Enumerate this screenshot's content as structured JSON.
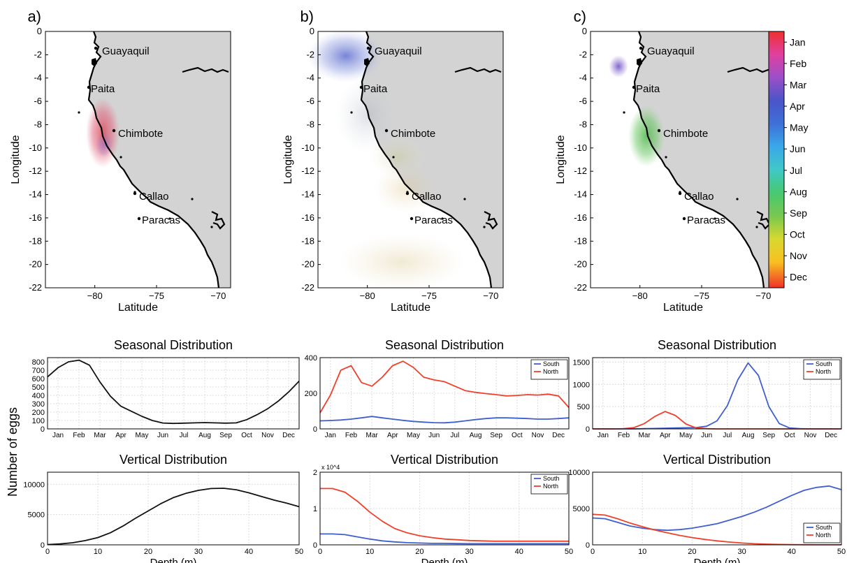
{
  "figure": {
    "ylabel_common": "Number of eggs",
    "colors": {
      "land": "#d3d3d3",
      "south": "#3f5fd0",
      "north": "#f0402a",
      "black": "#111111",
      "grid": "#dcdcdc"
    }
  },
  "maps": [
    {
      "panel_label": "a)",
      "xlabel": "Latitude",
      "ylabel": "Longitude",
      "x_ticks": [
        "-80",
        "-75",
        "-70"
      ],
      "y_ticks": [
        "0",
        "-2",
        "-4",
        "-6",
        "-8",
        "-10",
        "-12",
        "-14",
        "-16",
        "-18",
        "-20",
        "-22"
      ],
      "xlim": [
        -84,
        -69
      ],
      "ylim": [
        -22,
        0
      ],
      "cities": [
        "Guayaquil",
        "Paita",
        "Chimbote",
        "Callao",
        "Paracas",
        "Chimbote",
        "Callao",
        "Paracas"
      ]
    },
    {
      "panel_label": "b)",
      "xlabel": "Latitude",
      "ylabel": "Longitude",
      "x_ticks": [
        "-80",
        "-75",
        "-70"
      ],
      "y_ticks": [
        "0",
        "-2",
        "-4",
        "-6",
        "-8",
        "-10",
        "-12",
        "-14",
        "-16",
        "-18",
        "-20",
        "-22"
      ],
      "xlim": [
        -84,
        -69
      ],
      "ylim": [
        -22,
        0
      ],
      "cities": [
        "Guayaquil",
        "Paita",
        "Chimbote",
        "Callao",
        "Paracas"
      ]
    },
    {
      "panel_label": "c)",
      "xlabel": "Latitude",
      "ylabel": "Longitude",
      "x_ticks": [
        "-80",
        "-75",
        "-70"
      ],
      "y_ticks": [
        "0",
        "-2",
        "-4",
        "-6",
        "-8",
        "-10",
        "-12",
        "-14",
        "-16",
        "-18",
        "-20",
        "-22"
      ],
      "xlim": [
        -84,
        -69
      ],
      "ylim": [
        -22,
        0
      ],
      "cities": [
        "Guayaquil",
        "Paita",
        "Chimbote",
        "Callao",
        "Paracas"
      ]
    }
  ],
  "colorbar": {
    "labels": [
      "Jan",
      "Feb",
      "Mar",
      "Apr",
      "May",
      "Jun",
      "Jul",
      "Aug",
      "Sep",
      "Oct",
      "Nov",
      "Dec"
    ],
    "colors": [
      "#f03030",
      "#e040a0",
      "#9b4fc8",
      "#4a55c8",
      "#3f70d8",
      "#3aa8e8",
      "#40c8c8",
      "#48c870",
      "#78c850",
      "#d8d830",
      "#f8c020",
      "#f05028"
    ]
  },
  "chart_data": [
    {
      "type": "line",
      "title": "Seasonal Distribution",
      "xlabel": "",
      "ylabel": "",
      "categories": [
        "Jan",
        "Feb",
        "Mar",
        "Apr",
        "May",
        "Jun",
        "Jul",
        "Aug",
        "Sep",
        "Oct",
        "Nov",
        "Dec"
      ],
      "xlim": [
        0.5,
        12.5
      ],
      "ylim": [
        0,
        850
      ],
      "yticks": [
        0,
        100,
        200,
        300,
        400,
        500,
        600,
        700,
        800
      ],
      "series": [
        {
          "color": "#111111",
          "x": [
            0.5,
            1,
            1.5,
            2,
            2.5,
            3,
            3.5,
            4,
            4.5,
            5,
            5.5,
            6,
            6.5,
            7,
            7.5,
            8,
            8.5,
            9,
            9.5,
            10,
            10.5,
            11,
            11.5,
            12,
            12.5
          ],
          "y": [
            620,
            730,
            800,
            820,
            760,
            560,
            390,
            270,
            210,
            150,
            100,
            70,
            65,
            68,
            72,
            75,
            72,
            68,
            72,
            110,
            170,
            240,
            330,
            440,
            570
          ]
        }
      ]
    },
    {
      "type": "line",
      "title": "Seasonal Distribution",
      "xlabel": "",
      "ylabel": "",
      "categories": [
        "Jan",
        "Feb",
        "Mar",
        "Apr",
        "May",
        "Jun",
        "Jul",
        "Aug",
        "Sep",
        "Oct",
        "Nov",
        "Dec"
      ],
      "xlim": [
        0.5,
        12.5
      ],
      "ylim": [
        0,
        400
      ],
      "yticks": [
        0,
        200,
        400
      ],
      "legend": [
        "South",
        "North"
      ],
      "legend_position": "top-right",
      "series": [
        {
          "name": "South",
          "color": "#3f5fd0",
          "x": [
            0.5,
            1,
            1.5,
            2,
            2.5,
            3,
            3.5,
            4,
            4.5,
            5,
            5.5,
            6,
            6.5,
            7,
            7.5,
            8,
            8.5,
            9,
            9.5,
            10,
            10.5,
            11,
            11.5,
            12,
            12.5
          ],
          "y": [
            45,
            47,
            50,
            55,
            62,
            70,
            62,
            55,
            48,
            42,
            38,
            35,
            34,
            38,
            45,
            52,
            58,
            62,
            62,
            60,
            58,
            55,
            55,
            58,
            62
          ]
        },
        {
          "name": "North",
          "color": "#f0402a",
          "x": [
            0.5,
            1,
            1.5,
            2,
            2.5,
            3,
            3.5,
            4,
            4.5,
            5,
            5.5,
            6,
            6.5,
            7,
            7.5,
            8,
            8.5,
            9,
            9.5,
            10,
            10.5,
            11,
            11.5,
            12,
            12.5
          ],
          "y": [
            90,
            190,
            330,
            355,
            260,
            240,
            290,
            355,
            380,
            345,
            290,
            275,
            265,
            240,
            215,
            205,
            198,
            192,
            185,
            188,
            192,
            190,
            195,
            185,
            120
          ]
        }
      ]
    },
    {
      "type": "line",
      "title": "Seasonal Distribution",
      "xlabel": "",
      "ylabel": "",
      "categories": [
        "Jan",
        "Feb",
        "Mar",
        "Apr",
        "May",
        "Jun",
        "Jul",
        "Aug",
        "Sep",
        "Oct",
        "Nov",
        "Dec"
      ],
      "xlim": [
        0.5,
        12.5
      ],
      "ylim": [
        0,
        1600
      ],
      "yticks": [
        0,
        500,
        1000,
        1500
      ],
      "legend": [
        "South",
        "North"
      ],
      "legend_position": "top-right",
      "series": [
        {
          "name": "South",
          "color": "#3f5fd0",
          "x": [
            0.5,
            1,
            1.5,
            2,
            2.5,
            3,
            3.5,
            4,
            4.5,
            5,
            5.5,
            6,
            6.5,
            7,
            7.5,
            8,
            8.5,
            9,
            9.5,
            10,
            10.5,
            11,
            11.5,
            12,
            12.5
          ],
          "y": [
            0,
            0,
            0,
            0,
            0,
            5,
            10,
            15,
            20,
            25,
            30,
            60,
            180,
            520,
            1100,
            1480,
            1200,
            500,
            120,
            20,
            5,
            0,
            0,
            0,
            0
          ]
        },
        {
          "name": "North",
          "color": "#f0402a",
          "x": [
            0.5,
            1,
            1.5,
            2,
            2.5,
            3,
            3.5,
            4,
            4.5,
            5,
            5.5,
            6,
            6.5,
            7,
            7.5,
            8,
            8.5,
            9,
            9.5,
            10,
            10.5,
            11,
            11.5,
            12,
            12.5
          ],
          "y": [
            0,
            0,
            0,
            5,
            30,
            120,
            280,
            390,
            300,
            110,
            20,
            5,
            0,
            0,
            0,
            0,
            0,
            0,
            0,
            0,
            0,
            0,
            0,
            0,
            0
          ]
        }
      ]
    },
    {
      "type": "line",
      "title": "Vertical Distribution",
      "xlabel": "Depth (m)",
      "ylabel": "",
      "xlim": [
        0,
        50
      ],
      "xticks": [
        0,
        10,
        20,
        30,
        40,
        50
      ],
      "ylim": [
        0,
        12000
      ],
      "yticks": [
        0,
        5000,
        10000
      ],
      "series": [
        {
          "color": "#111111",
          "x": [
            0,
            2.5,
            5,
            7.5,
            10,
            12.5,
            15,
            17.5,
            20,
            22.5,
            25,
            27.5,
            30,
            32.5,
            35,
            37.5,
            40,
            42.5,
            45,
            47.5,
            50
          ],
          "y": [
            50,
            150,
            350,
            700,
            1200,
            2000,
            3100,
            4400,
            5600,
            6800,
            7800,
            8500,
            9000,
            9300,
            9350,
            9100,
            8600,
            8000,
            7400,
            6900,
            6300
          ]
        }
      ]
    },
    {
      "type": "line",
      "title": "Vertical Distribution",
      "xlabel": "Depth (m)",
      "ylabel": "",
      "xlim": [
        0,
        50
      ],
      "xticks": [
        0,
        10,
        20,
        30,
        40,
        50
      ],
      "ylim": [
        0,
        2
      ],
      "yticks": [
        0,
        1,
        2
      ],
      "y_scale_label": "x 10^4",
      "legend": [
        "South",
        "North"
      ],
      "legend_position": "top-right",
      "series": [
        {
          "name": "South",
          "color": "#3f5fd0",
          "x": [
            0,
            2.5,
            5,
            7.5,
            10,
            12.5,
            15,
            17.5,
            20,
            22.5,
            25,
            27.5,
            30,
            32.5,
            35,
            37.5,
            40,
            42.5,
            45,
            47.5,
            50
          ],
          "y": [
            0.3,
            0.3,
            0.28,
            0.22,
            0.16,
            0.11,
            0.08,
            0.06,
            0.05,
            0.04,
            0.04,
            0.035,
            0.03,
            0.03,
            0.03,
            0.03,
            0.03,
            0.03,
            0.03,
            0.03,
            0.03
          ]
        },
        {
          "name": "North",
          "color": "#f0402a",
          "x": [
            0,
            2.5,
            5,
            7.5,
            10,
            12.5,
            15,
            17.5,
            20,
            22.5,
            25,
            27.5,
            30,
            32.5,
            35,
            37.5,
            40,
            42.5,
            45,
            47.5,
            50
          ],
          "y": [
            1.55,
            1.55,
            1.45,
            1.2,
            0.9,
            0.65,
            0.45,
            0.33,
            0.25,
            0.2,
            0.16,
            0.14,
            0.12,
            0.11,
            0.1,
            0.1,
            0.1,
            0.1,
            0.1,
            0.1,
            0.1
          ]
        }
      ]
    },
    {
      "type": "line",
      "title": "Vertical Distribution",
      "xlabel": "Depth (m)",
      "ylabel": "",
      "xlim": [
        0,
        50
      ],
      "xticks": [
        0,
        10,
        20,
        30,
        40,
        50
      ],
      "ylim": [
        0,
        10000
      ],
      "yticks": [
        0,
        5000,
        10000
      ],
      "legend": [
        "South",
        "North"
      ],
      "legend_position": "bottom-right",
      "series": [
        {
          "name": "South",
          "color": "#3f5fd0",
          "x": [
            0,
            2.5,
            5,
            7.5,
            10,
            12.5,
            15,
            17.5,
            20,
            22.5,
            25,
            27.5,
            30,
            32.5,
            35,
            37.5,
            40,
            42.5,
            45,
            47.5,
            50
          ],
          "y": [
            3700,
            3600,
            3100,
            2600,
            2300,
            2100,
            2000,
            2100,
            2300,
            2600,
            2900,
            3400,
            3900,
            4500,
            5200,
            6000,
            6800,
            7500,
            7900,
            8100,
            7600
          ]
        },
        {
          "name": "North",
          "color": "#f0402a",
          "x": [
            0,
            2.5,
            5,
            7.5,
            10,
            12.5,
            15,
            17.5,
            20,
            22.5,
            25,
            27.5,
            30,
            32.5,
            35,
            37.5,
            40,
            42.5,
            45,
            47.5,
            50
          ],
          "y": [
            4200,
            4100,
            3600,
            3000,
            2500,
            2050,
            1650,
            1300,
            1000,
            750,
            550,
            380,
            250,
            150,
            100,
            60,
            30,
            20,
            10,
            5,
            5
          ]
        }
      ]
    }
  ]
}
